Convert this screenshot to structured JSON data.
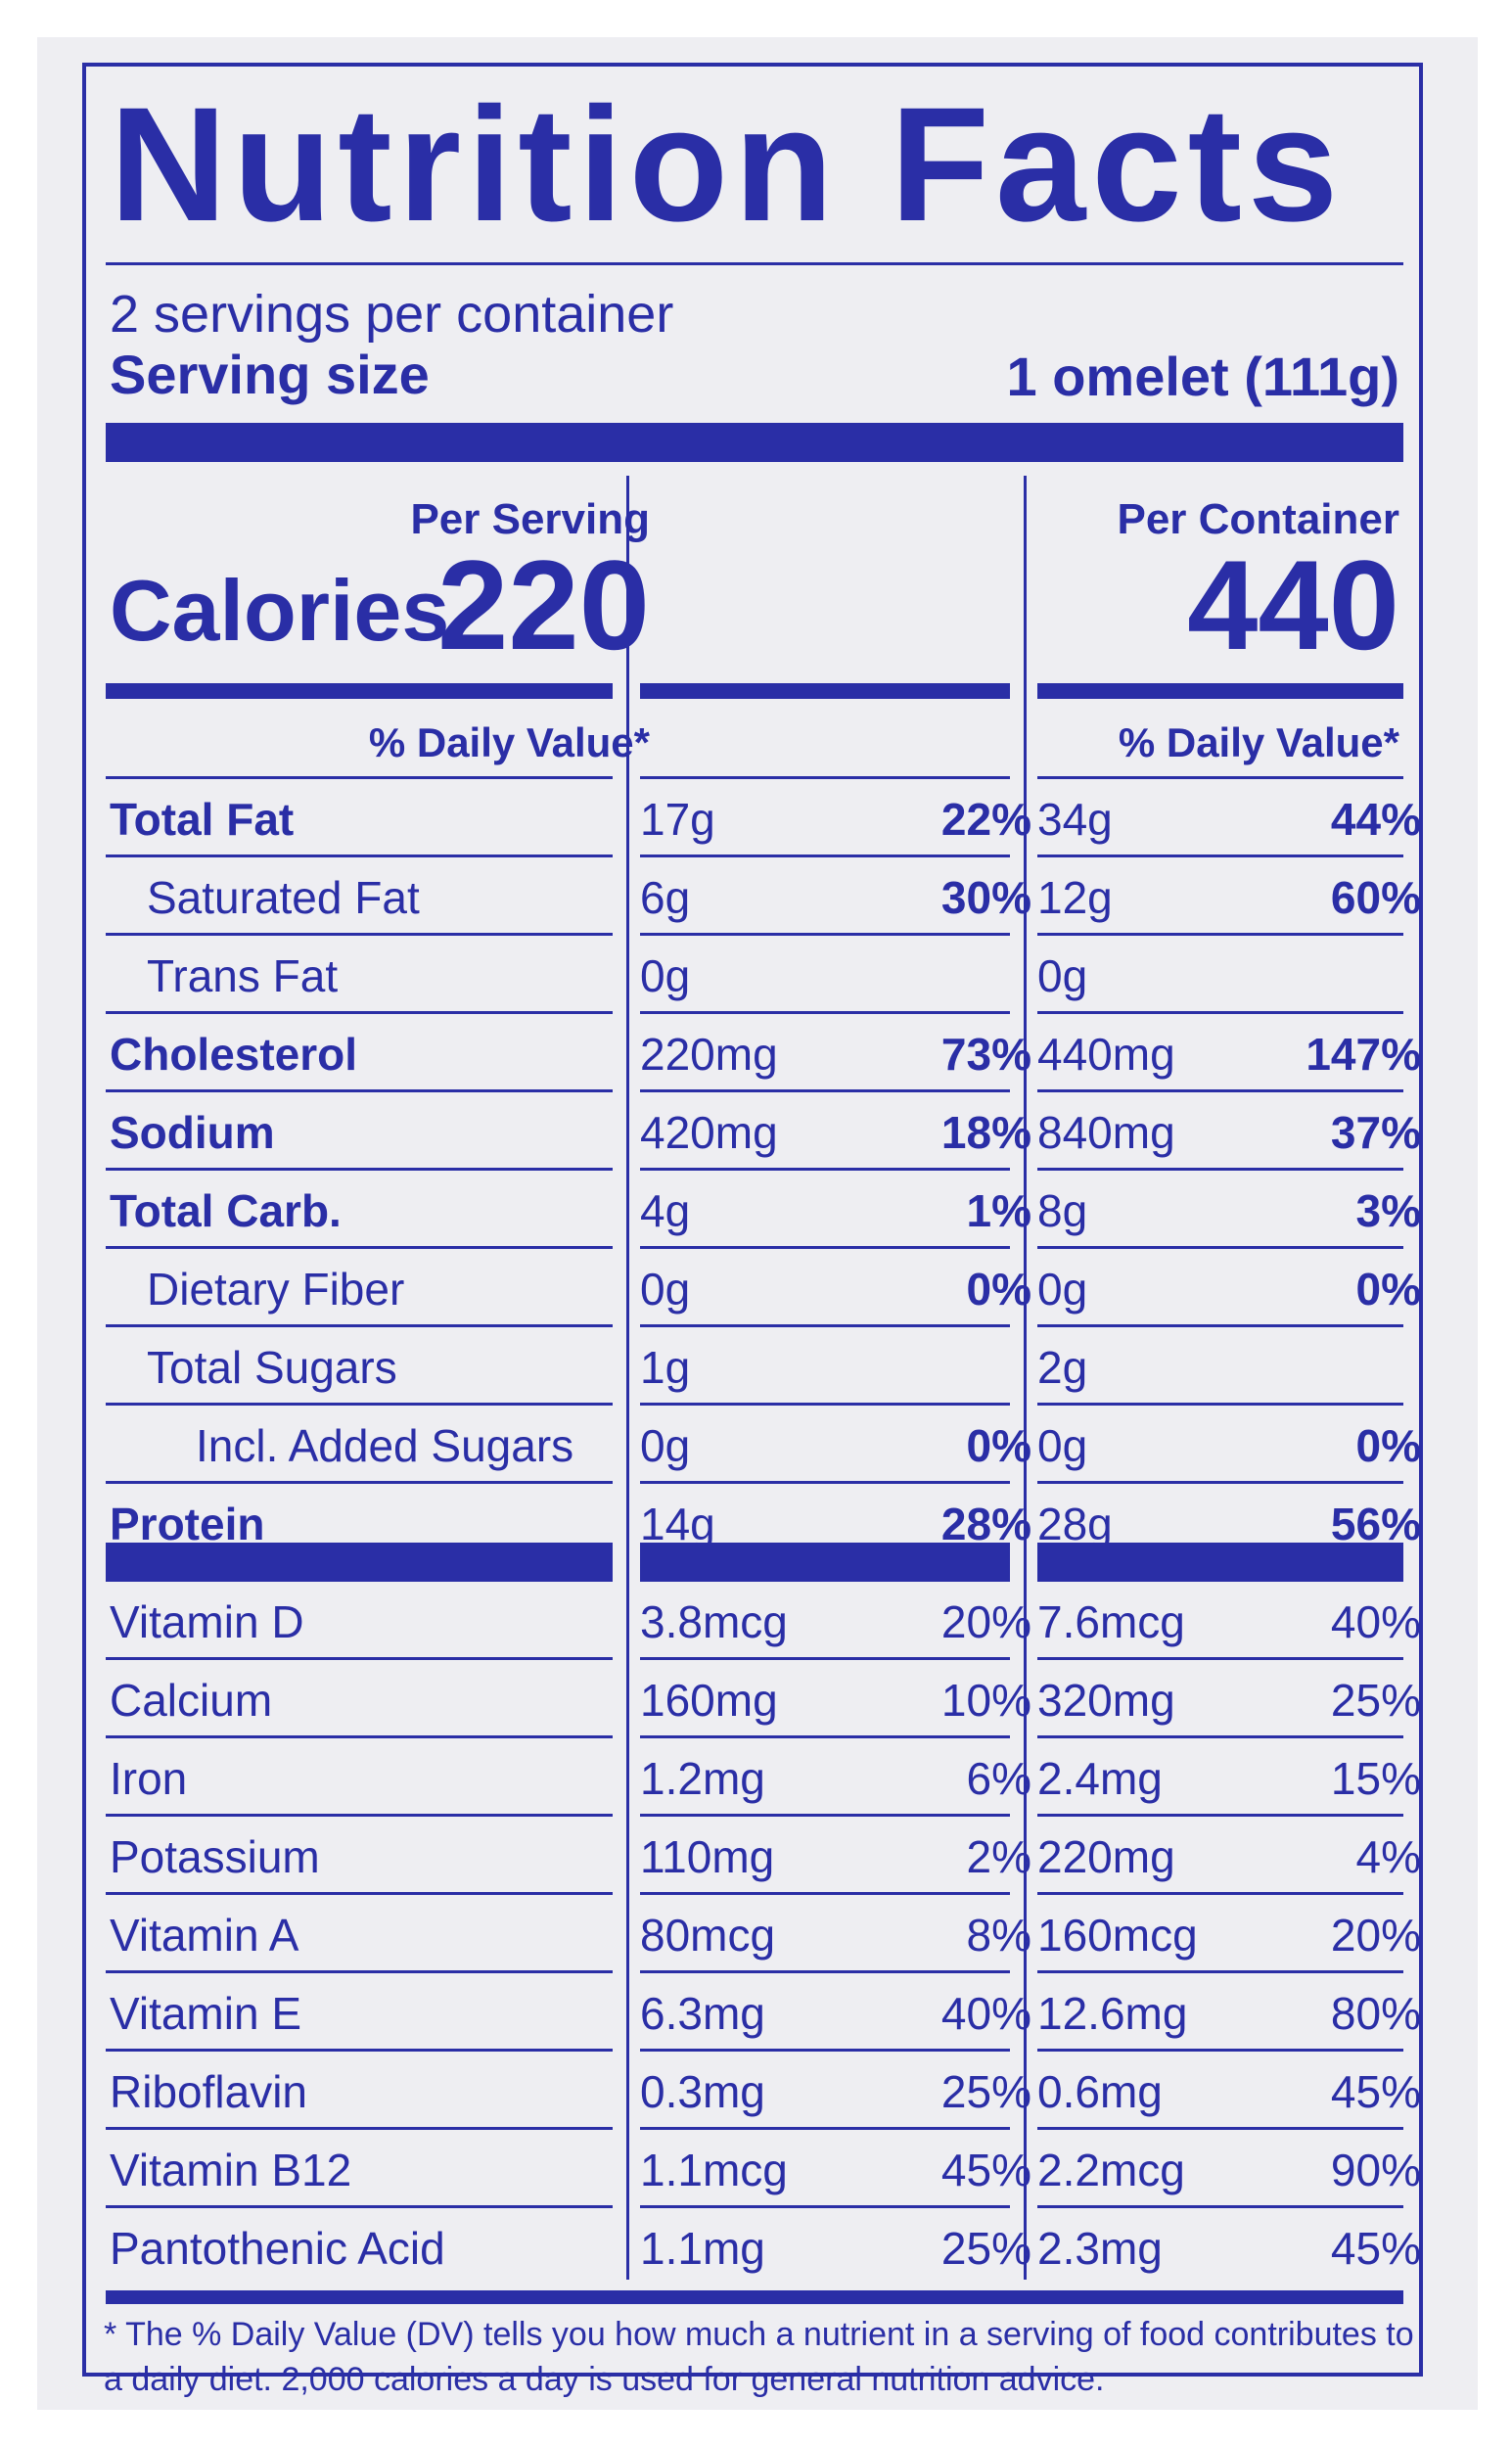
{
  "title": "Nutrition Facts",
  "servings_per_container": "2 servings per container",
  "serving_size_label": "Serving size",
  "serving_size_value": "1 omelet (111g)",
  "columns": {
    "per_serving": "Per Serving",
    "per_container": "Per Container",
    "daily_value": "% Daily Value*"
  },
  "calories": {
    "label": "Calories",
    "per_serving": "220",
    "per_container": "440"
  },
  "nutrients": [
    {
      "name": "Total Fat",
      "style": "bold",
      "amount1": "17g",
      "dv1": "22%",
      "amount2": "34g",
      "dv2": "44%"
    },
    {
      "name": "Saturated Fat",
      "style": "ind1",
      "amount1": "6g",
      "dv1": "30%",
      "amount2": "12g",
      "dv2": "60%"
    },
    {
      "name": "Trans Fat",
      "style": "ind1",
      "amount1": "0g",
      "dv1": "",
      "amount2": "0g",
      "dv2": ""
    },
    {
      "name": "Cholesterol",
      "style": "bold",
      "amount1": "220mg",
      "dv1": "73%",
      "amount2": "440mg",
      "dv2": "147%"
    },
    {
      "name": "Sodium",
      "style": "bold",
      "amount1": "420mg",
      "dv1": "18%",
      "amount2": "840mg",
      "dv2": "37%"
    },
    {
      "name": "Total Carb.",
      "style": "bold",
      "amount1": "4g",
      "dv1": "1%",
      "amount2": "8g",
      "dv2": "3%"
    },
    {
      "name": "Dietary Fiber",
      "style": "ind1",
      "amount1": "0g",
      "dv1": "0%",
      "amount2": "0g",
      "dv2": "0%"
    },
    {
      "name": "Total Sugars",
      "style": "ind1",
      "amount1": "1g",
      "dv1": "",
      "amount2": "2g",
      "dv2": ""
    },
    {
      "name": "Incl. Added Sugars",
      "style": "ind2",
      "amount1": "0g",
      "dv1": "0%",
      "amount2": "0g",
      "dv2": "0%"
    },
    {
      "name": "Protein",
      "style": "bold",
      "amount1": "14g",
      "dv1": "28%",
      "amount2": "28g",
      "dv2": "56%"
    }
  ],
  "vitamins": [
    {
      "name": "Vitamin D",
      "amount1": "3.8mcg",
      "dv1": "20%",
      "amount2": "7.6mcg",
      "dv2": "40%"
    },
    {
      "name": "Calcium",
      "amount1": "160mg",
      "dv1": "10%",
      "amount2": "320mg",
      "dv2": "25%"
    },
    {
      "name": "Iron",
      "amount1": "1.2mg",
      "dv1": "6%",
      "amount2": "2.4mg",
      "dv2": "15%"
    },
    {
      "name": "Potassium",
      "amount1": "110mg",
      "dv1": "2%",
      "amount2": "220mg",
      "dv2": "4%"
    },
    {
      "name": "Vitamin A",
      "amount1": "80mcg",
      "dv1": "8%",
      "amount2": "160mcg",
      "dv2": "20%"
    },
    {
      "name": "Vitamin E",
      "amount1": "6.3mg",
      "dv1": "40%",
      "amount2": "12.6mg",
      "dv2": "80%"
    },
    {
      "name": "Riboflavin",
      "amount1": "0.3mg",
      "dv1": "25%",
      "amount2": "0.6mg",
      "dv2": "45%"
    },
    {
      "name": "Vitamin B12",
      "amount1": "1.1mcg",
      "dv1": "45%",
      "amount2": "2.2mcg",
      "dv2": "90%"
    },
    {
      "name": "Pantothenic Acid",
      "amount1": "1.1mg",
      "dv1": "25%",
      "amount2": "2.3mg",
      "dv2": "45%"
    }
  ],
  "footnote": "* The % Daily Value (DV) tells you how much a nutrient in a serving of food contributes to a daily diet. 2,000 calories a day is used for general nutrition advice.",
  "colors": {
    "ink": "#2a2ea6",
    "background": "#eeeef2"
  }
}
